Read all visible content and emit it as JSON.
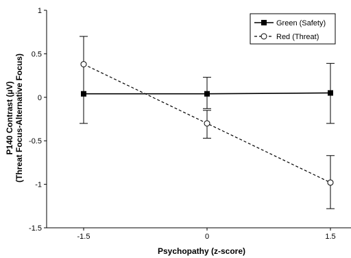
{
  "chart_data": {
    "type": "line",
    "title": "",
    "xlabel": "Psychopathy (z-score)",
    "ylabel_line1": "P140 Contrast (µV)",
    "ylabel_line2": "(Threat Focus-Alternative Focus)",
    "x": [
      -1.5,
      0,
      1.5
    ],
    "x_tick_labels": [
      "-1.5",
      "0",
      "1.5"
    ],
    "xlim": [
      -1.95,
      1.75
    ],
    "ylim": [
      -1.5,
      1
    ],
    "y_ticks": [
      1,
      0.5,
      0,
      -0.5,
      -1,
      -1.5
    ],
    "y_tick_labels": [
      "1",
      "0.5",
      "0",
      "-0.5",
      "-1",
      "-1.5"
    ],
    "grid": false,
    "legend_position": "top-right",
    "series": [
      {
        "name": "Green (Safety)",
        "values": [
          0.04,
          0.04,
          0.05
        ],
        "error_low": [
          -0.3,
          -0.13,
          -0.3
        ],
        "error_high": [
          0.7,
          0.23,
          0.39
        ],
        "marker": "filled-square",
        "line_style": "solid",
        "color": "#000000"
      },
      {
        "name": "Red (Threat)",
        "values": [
          0.38,
          -0.3,
          -0.98
        ],
        "error_low": [
          0.38,
          -0.47,
          -1.28
        ],
        "error_high": [
          0.38,
          -0.15,
          -0.67
        ],
        "marker": "open-circle",
        "line_style": "dashed",
        "color": "#000000"
      }
    ]
  }
}
